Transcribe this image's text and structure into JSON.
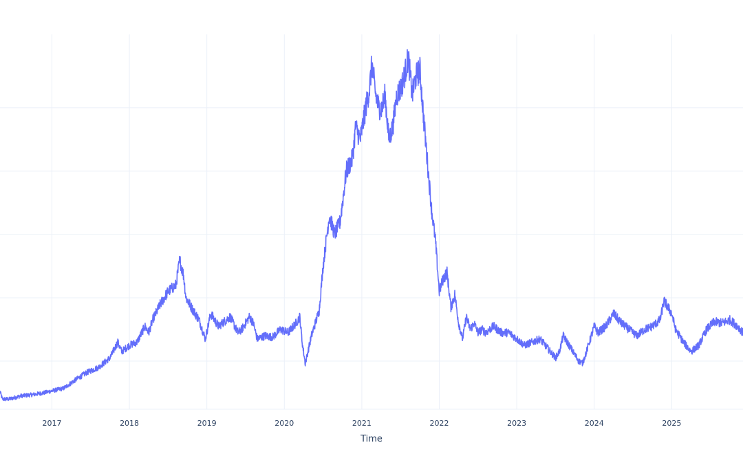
{
  "chart_data": {
    "type": "line",
    "title": "",
    "xlabel": "Time",
    "ylabel": "",
    "grid": true,
    "legend": "none",
    "colors": {
      "line": "#636efa",
      "grid": "#ebf0f8",
      "text": "#2a3f5f",
      "background": "#ffffff"
    },
    "xlim": [
      2016.33,
      2025.92
    ],
    "ylim": [
      0.24,
      6.16
    ],
    "x_ticks": [
      {
        "value": 2017,
        "label": "2017"
      },
      {
        "value": 2018,
        "label": "2018"
      },
      {
        "value": 2019,
        "label": "2019"
      },
      {
        "value": 2020,
        "label": "2020"
      },
      {
        "value": 2021,
        "label": "2021"
      },
      {
        "value": 2022,
        "label": "2022"
      },
      {
        "value": 2023,
        "label": "2023"
      },
      {
        "value": 2024,
        "label": "2024"
      },
      {
        "value": 2025,
        "label": "2025"
      }
    ],
    "y_grid": [
      1,
      2,
      3,
      4,
      5
    ],
    "series": [
      {
        "x": [
          2016.33,
          2016.36,
          2016.45,
          2016.6,
          2016.75,
          2016.9,
          2017.0,
          2017.15,
          2017.3,
          2017.45,
          2017.6,
          2017.75,
          2017.85,
          2017.9,
          2017.95,
          2018.0,
          2018.1,
          2018.2,
          2018.25,
          2018.3,
          2018.4,
          2018.5,
          2018.6,
          2018.65,
          2018.7,
          2018.73,
          2018.8,
          2018.9,
          2018.98,
          2019.05,
          2019.15,
          2019.3,
          2019.4,
          2019.45,
          2019.55,
          2019.6,
          2019.65,
          2019.75,
          2019.85,
          2019.95,
          2020.05,
          2020.15,
          2020.2,
          2020.23,
          2020.27,
          2020.35,
          2020.45,
          2020.5,
          2020.58,
          2020.65,
          2020.72,
          2020.8,
          2020.88,
          2020.92,
          2020.98,
          2021.05,
          2021.1,
          2021.13,
          2021.18,
          2021.22,
          2021.26,
          2021.3,
          2021.35,
          2021.4,
          2021.45,
          2021.5,
          2021.55,
          2021.6,
          2021.65,
          2021.7,
          2021.75,
          2021.8,
          2021.85,
          2021.9,
          2021.95,
          2022.0,
          2022.05,
          2022.1,
          2022.15,
          2022.2,
          2022.25,
          2022.3,
          2022.35,
          2022.4,
          2022.45,
          2022.5,
          2022.55,
          2022.6,
          2022.7,
          2022.8,
          2022.9,
          2023.0,
          2023.1,
          2023.2,
          2023.3,
          2023.4,
          2023.5,
          2023.55,
          2023.6,
          2023.7,
          2023.8,
          2023.85,
          2023.9,
          2024.0,
          2024.05,
          2024.15,
          2024.25,
          2024.35,
          2024.45,
          2024.55,
          2024.65,
          2024.75,
          2024.85,
          2024.9,
          2025.0,
          2025.05,
          2025.15,
          2025.25,
          2025.35,
          2025.45,
          2025.55,
          2025.65,
          2025.75,
          2025.85,
          2025.92
        ],
        "y": [
          0.52,
          0.4,
          0.4,
          0.45,
          0.47,
          0.5,
          0.53,
          0.57,
          0.7,
          0.82,
          0.9,
          1.05,
          1.3,
          1.15,
          1.2,
          1.25,
          1.3,
          1.55,
          1.45,
          1.65,
          1.9,
          2.1,
          2.2,
          2.6,
          2.35,
          2.0,
          1.85,
          1.65,
          1.35,
          1.75,
          1.55,
          1.7,
          1.45,
          1.5,
          1.7,
          1.6,
          1.35,
          1.4,
          1.38,
          1.5,
          1.45,
          1.6,
          1.7,
          1.3,
          0.96,
          1.4,
          1.8,
          2.5,
          3.3,
          3.0,
          3.2,
          4.0,
          4.2,
          4.7,
          4.5,
          5.0,
          5.3,
          5.7,
          5.2,
          5.0,
          5.0,
          5.2,
          4.5,
          4.7,
          5.2,
          5.3,
          5.5,
          5.8,
          5.2,
          5.5,
          5.6,
          4.8,
          4.1,
          3.4,
          2.9,
          2.1,
          2.3,
          2.4,
          1.85,
          2.05,
          1.6,
          1.35,
          1.7,
          1.5,
          1.6,
          1.45,
          1.5,
          1.45,
          1.55,
          1.45,
          1.45,
          1.35,
          1.25,
          1.3,
          1.35,
          1.2,
          1.05,
          1.15,
          1.4,
          1.2,
          1.0,
          0.97,
          1.15,
          1.55,
          1.45,
          1.55,
          1.75,
          1.6,
          1.5,
          1.4,
          1.5,
          1.55,
          1.65,
          1.95,
          1.75,
          1.5,
          1.3,
          1.15,
          1.25,
          1.5,
          1.62,
          1.6,
          1.65,
          1.55,
          1.45
        ]
      }
    ]
  }
}
